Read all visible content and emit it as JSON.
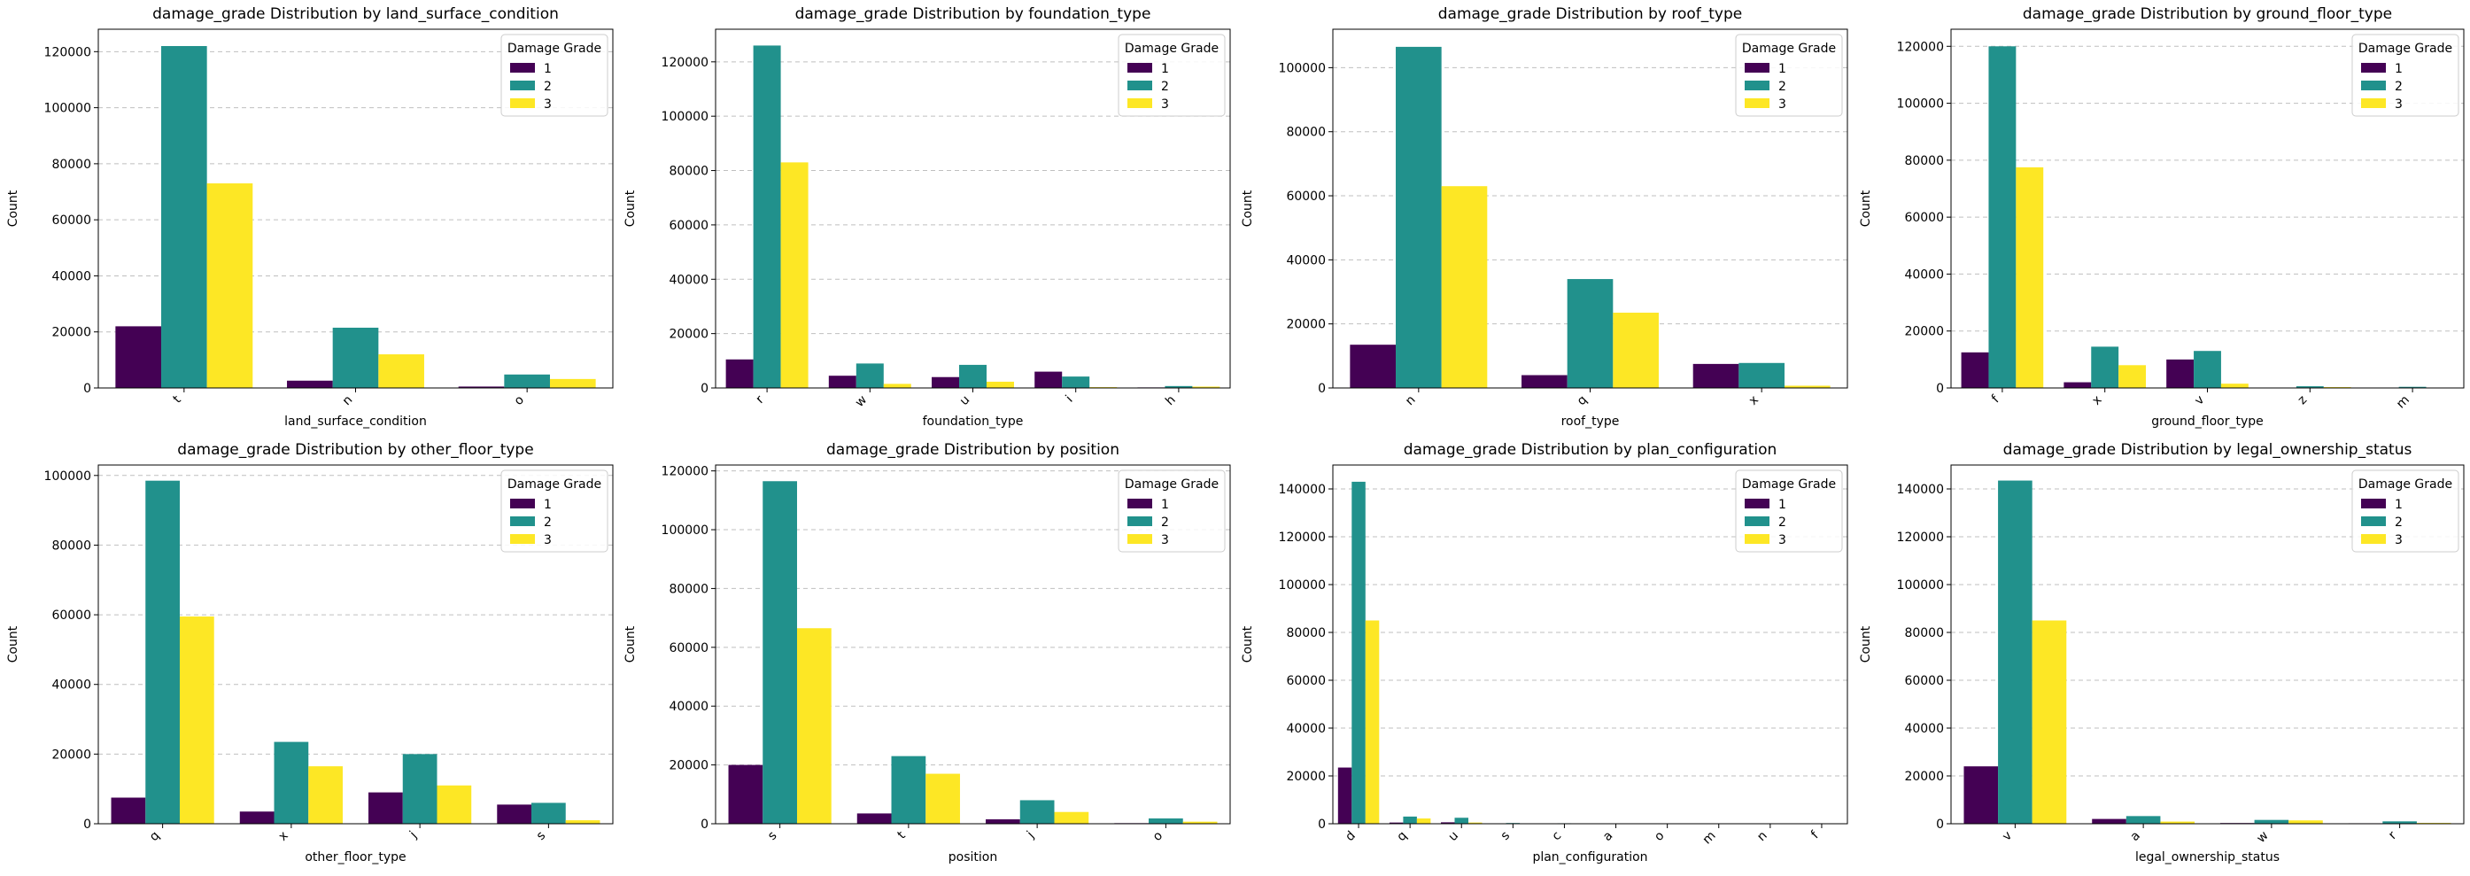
{
  "figure": {
    "colors": {
      "1": "#440154",
      "2": "#21918c",
      "3": "#fde725"
    },
    "legend_title": "Damage Grade",
    "ylabel": "Count"
  },
  "chart_data": [
    {
      "type": "bar",
      "title": "damage_grade Distribution by land_surface_condition",
      "xlabel": "land_surface_condition",
      "ylabel": "Count",
      "ylim": [
        0,
        128000
      ],
      "yticks": [
        0,
        20000,
        40000,
        60000,
        80000,
        100000,
        120000
      ],
      "categories": [
        "t",
        "n",
        "o"
      ],
      "series": [
        {
          "name": "1",
          "values": [
            22000,
            2600,
            500
          ]
        },
        {
          "name": "2",
          "values": [
            122000,
            21500,
            4800
          ]
        },
        {
          "name": "3",
          "values": [
            73000,
            12000,
            3200
          ]
        }
      ],
      "legend_title": "Damage Grade",
      "legend_position": "top-right"
    },
    {
      "type": "bar",
      "title": "damage_grade Distribution by foundation_type",
      "xlabel": "foundation_type",
      "ylabel": "Count",
      "ylim": [
        0,
        132000
      ],
      "yticks": [
        0,
        20000,
        40000,
        60000,
        80000,
        100000,
        120000
      ],
      "categories": [
        "r",
        "w",
        "u",
        "i",
        "h"
      ],
      "series": [
        {
          "name": "1",
          "values": [
            10500,
            4500,
            4000,
            6000,
            200
          ]
        },
        {
          "name": "2",
          "values": [
            126000,
            9000,
            8500,
            4200,
            700
          ]
        },
        {
          "name": "3",
          "values": [
            83000,
            1500,
            2300,
            300,
            500
          ]
        }
      ],
      "legend_title": "Damage Grade",
      "legend_position": "top-right"
    },
    {
      "type": "bar",
      "title": "damage_grade Distribution by roof_type",
      "xlabel": "roof_type",
      "ylabel": "Count",
      "ylim": [
        0,
        112000
      ],
      "yticks": [
        0,
        20000,
        40000,
        60000,
        80000,
        100000
      ],
      "categories": [
        "n",
        "q",
        "x"
      ],
      "series": [
        {
          "name": "1",
          "values": [
            13500,
            4000,
            7500
          ]
        },
        {
          "name": "2",
          "values": [
            106500,
            34000,
            7800
          ]
        },
        {
          "name": "3",
          "values": [
            63000,
            23500,
            700
          ]
        }
      ],
      "legend_title": "Damage Grade",
      "legend_position": "top-right"
    },
    {
      "type": "bar",
      "title": "damage_grade Distribution by ground_floor_type",
      "xlabel": "ground_floor_type",
      "ylabel": "Count",
      "ylim": [
        0,
        126000
      ],
      "yticks": [
        0,
        20000,
        40000,
        60000,
        80000,
        100000,
        120000
      ],
      "categories": [
        "f",
        "x",
        "v",
        "z",
        "m"
      ],
      "series": [
        {
          "name": "1",
          "values": [
            12500,
            2000,
            10000,
            150,
            100
          ]
        },
        {
          "name": "2",
          "values": [
            120000,
            14500,
            13000,
            600,
            400
          ]
        },
        {
          "name": "3",
          "values": [
            77500,
            8000,
            1500,
            300,
            150
          ]
        }
      ],
      "legend_title": "Damage Grade",
      "legend_position": "top-right"
    },
    {
      "type": "bar",
      "title": "damage_grade Distribution by other_floor_type",
      "xlabel": "other_floor_type",
      "ylabel": "Count",
      "ylim": [
        0,
        103000
      ],
      "yticks": [
        0,
        20000,
        40000,
        60000,
        80000,
        100000
      ],
      "categories": [
        "q",
        "x",
        "j",
        "s"
      ],
      "series": [
        {
          "name": "1",
          "values": [
            7500,
            3500,
            9000,
            5500
          ]
        },
        {
          "name": "2",
          "values": [
            98500,
            23500,
            20000,
            6000
          ]
        },
        {
          "name": "3",
          "values": [
            59500,
            16500,
            11000,
            1000
          ]
        }
      ],
      "legend_title": "Damage Grade",
      "legend_position": "top-right"
    },
    {
      "type": "bar",
      "title": "damage_grade Distribution by position",
      "xlabel": "position",
      "ylabel": "Count",
      "ylim": [
        0,
        122000
      ],
      "yticks": [
        0,
        20000,
        40000,
        60000,
        80000,
        100000,
        120000
      ],
      "categories": [
        "s",
        "t",
        "j",
        "o"
      ],
      "series": [
        {
          "name": "1",
          "values": [
            20000,
            3500,
            1500,
            200
          ]
        },
        {
          "name": "2",
          "values": [
            116500,
            23000,
            8000,
            1800
          ]
        },
        {
          "name": "3",
          "values": [
            66500,
            17000,
            4000,
            700
          ]
        }
      ],
      "legend_title": "Damage Grade",
      "legend_position": "top-right"
    },
    {
      "type": "bar",
      "title": "damage_grade Distribution by plan_configuration",
      "xlabel": "plan_configuration",
      "ylabel": "Count",
      "ylim": [
        0,
        150000
      ],
      "yticks": [
        0,
        20000,
        40000,
        60000,
        80000,
        100000,
        120000,
        140000
      ],
      "categories": [
        "d",
        "q",
        "u",
        "s",
        "c",
        "a",
        "o",
        "m",
        "n",
        "f"
      ],
      "series": [
        {
          "name": "1",
          "values": [
            23500,
            500,
            600,
            50,
            30,
            50,
            20,
            10,
            10,
            5
          ]
        },
        {
          "name": "2",
          "values": [
            143000,
            3000,
            2500,
            300,
            200,
            150,
            100,
            50,
            40,
            20
          ]
        },
        {
          "name": "3",
          "values": [
            85000,
            2200,
            500,
            100,
            80,
            60,
            40,
            20,
            10,
            5
          ]
        }
      ],
      "legend_title": "Damage Grade",
      "legend_position": "top-right"
    },
    {
      "type": "bar",
      "title": "damage_grade Distribution by legal_ownership_status",
      "xlabel": "legal_ownership_status",
      "ylabel": "Count",
      "ylim": [
        0,
        150000
      ],
      "yticks": [
        0,
        20000,
        40000,
        60000,
        80000,
        100000,
        120000,
        140000
      ],
      "categories": [
        "v",
        "a",
        "w",
        "r"
      ],
      "series": [
        {
          "name": "1",
          "values": [
            24000,
            2000,
            300,
            200
          ]
        },
        {
          "name": "2",
          "values": [
            143500,
            3200,
            1600,
            1000
          ]
        },
        {
          "name": "3",
          "values": [
            85000,
            900,
            1400,
            350
          ]
        }
      ],
      "legend_title": "Damage Grade",
      "legend_position": "top-right"
    }
  ]
}
